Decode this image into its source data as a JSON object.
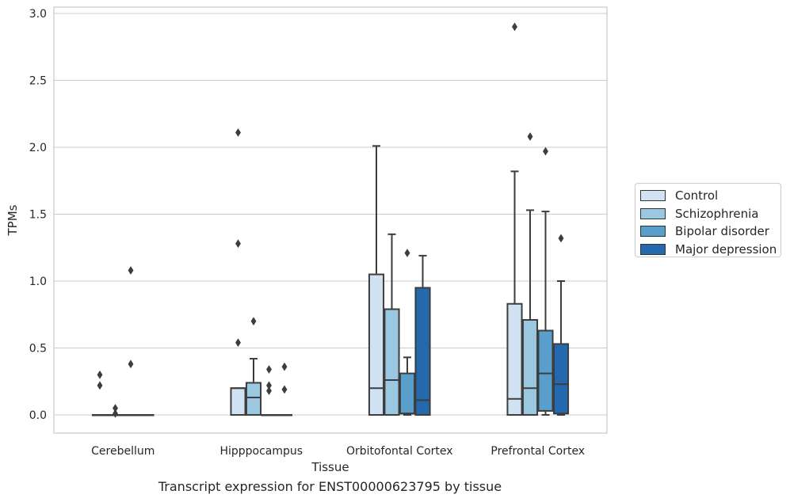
{
  "chart_data": {
    "type": "boxplot",
    "title": "Transcript expression for ENST00000623795 by tissue",
    "xlabel": "Tissue",
    "ylabel": "TPMs",
    "ylim": [
      -0.14,
      3.05
    ],
    "yticks": [
      "0.0",
      "0.5",
      "1.0",
      "1.5",
      "2.0",
      "2.5",
      "3.0"
    ],
    "categories": [
      "Cerebellum",
      "Hipppocampus",
      "Orbitofontal Cortex",
      "Prefrontal Cortex"
    ],
    "grid": true,
    "legend_position": "right",
    "series": [
      {
        "name": "Control",
        "color": "#d1e2f2",
        "boxes": [
          {
            "q1": 0,
            "median": 0,
            "q3": 0,
            "whisker_low": 0,
            "whisker_high": 0,
            "outliers": [
              0.3,
              0.22
            ]
          },
          {
            "q1": 0,
            "median": 0.2,
            "q3": 0.2,
            "whisker_low": 0,
            "whisker_high": 0.2,
            "outliers": [
              2.11,
              1.28,
              0.54
            ]
          },
          {
            "q1": 0,
            "median": 0.2,
            "q3": 1.05,
            "whisker_low": 0,
            "whisker_high": 2.01,
            "outliers": []
          },
          {
            "q1": 0,
            "median": 0.12,
            "q3": 0.83,
            "whisker_low": 0,
            "whisker_high": 1.82,
            "outliers": [
              2.9
            ]
          }
        ]
      },
      {
        "name": "Schizophrenia",
        "color": "#9ac8e0",
        "boxes": [
          {
            "q1": 0,
            "median": 0,
            "q3": 0,
            "whisker_low": 0,
            "whisker_high": 0,
            "outliers": [
              0.05,
              0.01
            ]
          },
          {
            "q1": 0,
            "median": 0.13,
            "q3": 0.24,
            "whisker_low": 0,
            "whisker_high": 0.42,
            "outliers": [
              0.7
            ]
          },
          {
            "q1": 0,
            "median": 0.26,
            "q3": 0.79,
            "whisker_low": 0,
            "whisker_high": 1.35,
            "outliers": []
          },
          {
            "q1": 0,
            "median": 0.2,
            "q3": 0.71,
            "whisker_low": 0,
            "whisker_high": 1.53,
            "outliers": [
              2.08
            ]
          }
        ]
      },
      {
        "name": "Bipolar disorder",
        "color": "#5a9fcc",
        "boxes": [
          {
            "q1": 0,
            "median": 0,
            "q3": 0,
            "whisker_low": 0,
            "whisker_high": 0,
            "outliers": [
              1.08,
              0.38
            ]
          },
          {
            "q1": 0,
            "median": 0,
            "q3": 0,
            "whisker_low": 0,
            "whisker_high": 0,
            "outliers": [
              0.34,
              0.22,
              0.18
            ]
          },
          {
            "q1": 0.01,
            "median": 0.01,
            "q3": 0.31,
            "whisker_low": 0,
            "whisker_high": 0.43,
            "outliers": [
              1.21
            ]
          },
          {
            "q1": 0.03,
            "median": 0.31,
            "q3": 0.63,
            "whisker_low": 0,
            "whisker_high": 1.52,
            "outliers": [
              1.97
            ]
          }
        ]
      },
      {
        "name": "Major depression",
        "color": "#2468ad",
        "boxes": [
          {
            "q1": 0,
            "median": 0,
            "q3": 0,
            "whisker_low": 0,
            "whisker_high": 0,
            "outliers": []
          },
          {
            "q1": 0,
            "median": 0,
            "q3": 0,
            "whisker_low": 0,
            "whisker_high": 0,
            "outliers": [
              0.36,
              0.19
            ]
          },
          {
            "q1": 0,
            "median": 0.11,
            "q3": 0.95,
            "whisker_low": 0,
            "whisker_high": 1.19,
            "outliers": []
          },
          {
            "q1": 0.01,
            "median": 0.23,
            "q3": 0.53,
            "whisker_low": 0,
            "whisker_high": 1.0,
            "outliers": [
              1.32
            ]
          }
        ]
      }
    ]
  }
}
